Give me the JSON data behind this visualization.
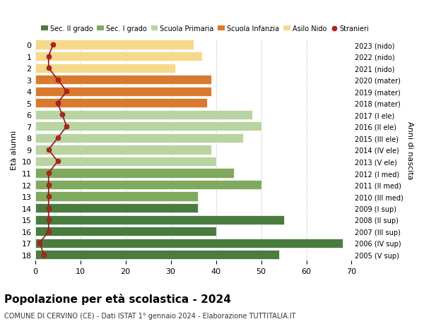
{
  "ages": [
    18,
    17,
    16,
    15,
    14,
    13,
    12,
    11,
    10,
    9,
    8,
    7,
    6,
    5,
    4,
    3,
    2,
    1,
    0
  ],
  "bar_values": [
    54,
    68,
    40,
    55,
    36,
    36,
    50,
    44,
    40,
    39,
    46,
    50,
    48,
    38,
    39,
    39,
    31,
    37,
    35
  ],
  "stranieri": [
    2,
    1,
    3,
    3,
    3,
    3,
    3,
    3,
    5,
    3,
    5,
    7,
    6,
    5,
    7,
    5,
    3,
    3,
    4
  ],
  "right_labels": [
    "2005 (V sup)",
    "2006 (IV sup)",
    "2007 (III sup)",
    "2008 (II sup)",
    "2009 (I sup)",
    "2010 (III med)",
    "2011 (II med)",
    "2012 (I med)",
    "2013 (V ele)",
    "2014 (IV ele)",
    "2015 (III ele)",
    "2016 (II ele)",
    "2017 (I ele)",
    "2018 (mater)",
    "2019 (mater)",
    "2020 (mater)",
    "2021 (nido)",
    "2022 (nido)",
    "2023 (nido)"
  ],
  "bar_colors": [
    "#4a7c3f",
    "#4a7c3f",
    "#4a7c3f",
    "#4a7c3f",
    "#4a7c3f",
    "#7faa5e",
    "#7faa5e",
    "#7faa5e",
    "#b8d4a0",
    "#b8d4a0",
    "#b8d4a0",
    "#b8d4a0",
    "#b8d4a0",
    "#d97a2e",
    "#d97a2e",
    "#d97a2e",
    "#f5d98b",
    "#f5d98b",
    "#f5d98b"
  ],
  "legend_labels": [
    "Sec. II grado",
    "Sec. I grado",
    "Scuola Primaria",
    "Scuola Infanzia",
    "Asilo Nido",
    "Stranieri"
  ],
  "legend_colors": [
    "#4a7c3f",
    "#7faa5e",
    "#b8d4a0",
    "#d97a2e",
    "#f5d98b",
    "#b22222"
  ],
  "ylabel": "Età alunni",
  "right_ylabel": "Anni di nascita",
  "xlim": [
    0,
    70
  ],
  "xticks": [
    0,
    10,
    20,
    30,
    40,
    50,
    60,
    70
  ],
  "title": "Popolazione per età scolastica - 2024",
  "subtitle": "COMUNE DI CERVINO (CE) - Dati ISTAT 1° gennaio 2024 - Elaborazione TUTTITALIA.IT",
  "bg_color": "#ffffff",
  "grid_color": "#cccccc"
}
